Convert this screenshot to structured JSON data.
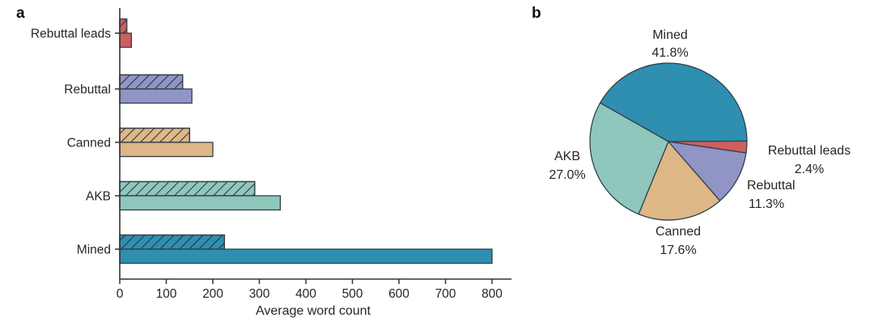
{
  "panels": {
    "a": {
      "label": "a"
    },
    "b": {
      "label": "b"
    }
  },
  "colors": {
    "Mined": "#2e8fb0",
    "AKB": "#8fc7bc",
    "Canned": "#deb787",
    "Rebuttal": "#9095c5",
    "Rebuttal leads": "#cf5f5f",
    "outline": "#32404a",
    "hatch": "#22303b",
    "axis": "#333333",
    "text": "#262626"
  },
  "chart_data": [
    {
      "type": "bar",
      "orientation": "horizontal",
      "title": "",
      "xlabel": "Average word count",
      "ylabel": "",
      "categories": [
        "Rebuttal leads",
        "Rebuttal",
        "Canned",
        "AKB",
        "Mined"
      ],
      "series": [
        {
          "name": "hatched",
          "style": "hatched",
          "values": [
            15,
            135,
            150,
            290,
            225
          ]
        },
        {
          "name": "solid",
          "style": "solid",
          "values": [
            25,
            155,
            200,
            345,
            800
          ]
        }
      ],
      "xlim": [
        0,
        800
      ],
      "xticks": [
        0,
        100,
        200,
        300,
        400,
        500,
        600,
        700,
        800
      ],
      "grid": false,
      "legend_position": "none"
    },
    {
      "type": "pie",
      "labels": [
        "Mined",
        "AKB",
        "Canned",
        "Rebuttal",
        "Rebuttal leads"
      ],
      "values": [
        41.8,
        27.0,
        17.6,
        11.3,
        2.4
      ],
      "percent_labels": [
        "41.8%",
        "27.0%",
        "17.6%",
        "11.3%",
        "2.4%"
      ],
      "start_angle": 0,
      "direction": "counterclockwise",
      "legend_position": "none"
    }
  ]
}
